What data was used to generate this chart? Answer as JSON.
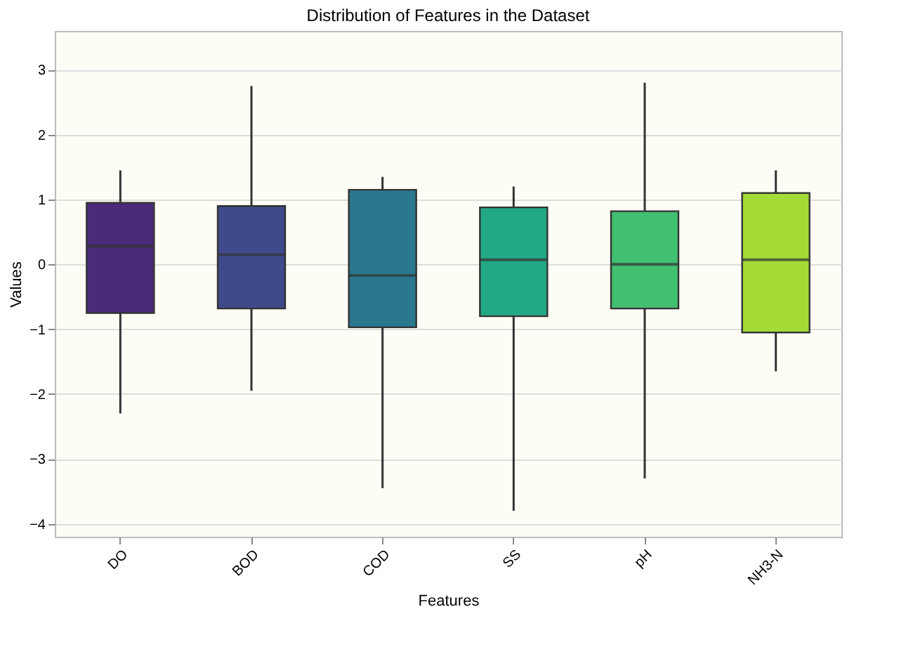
{
  "chart_data": {
    "type": "box",
    "title": "Distribution of Features in the Dataset",
    "xlabel": "Features",
    "ylabel": "Values",
    "categories": [
      "DO",
      "BOD",
      "COD",
      "SS",
      "pH",
      "NH3-N"
    ],
    "colors": [
      "#4b2a7a",
      "#3f4a8a",
      "#2a788e",
      "#22a884",
      "#43bf71",
      "#a5db36"
    ],
    "boxes": [
      {
        "low": -2.3,
        "q1": -0.75,
        "median": 0.28,
        "q3": 0.95,
        "high": 1.45
      },
      {
        "low": -1.95,
        "q1": -0.68,
        "median": 0.15,
        "q3": 0.9,
        "high": 2.75
      },
      {
        "low": -3.45,
        "q1": -0.97,
        "median": -0.17,
        "q3": 1.15,
        "high": 1.35
      },
      {
        "low": -3.8,
        "q1": -0.8,
        "median": 0.07,
        "q3": 0.88,
        "high": 1.2
      },
      {
        "low": -3.3,
        "q1": -0.68,
        "median": 0.0,
        "q3": 0.82,
        "high": 2.8
      },
      {
        "low": -1.65,
        "q1": -1.05,
        "median": 0.07,
        "q3": 1.1,
        "high": 1.45
      }
    ],
    "ylim": [
      -4.2,
      3.6
    ],
    "yticks": [
      -4,
      -3,
      -2,
      -1,
      0,
      1,
      2,
      3
    ],
    "grid": "y"
  }
}
